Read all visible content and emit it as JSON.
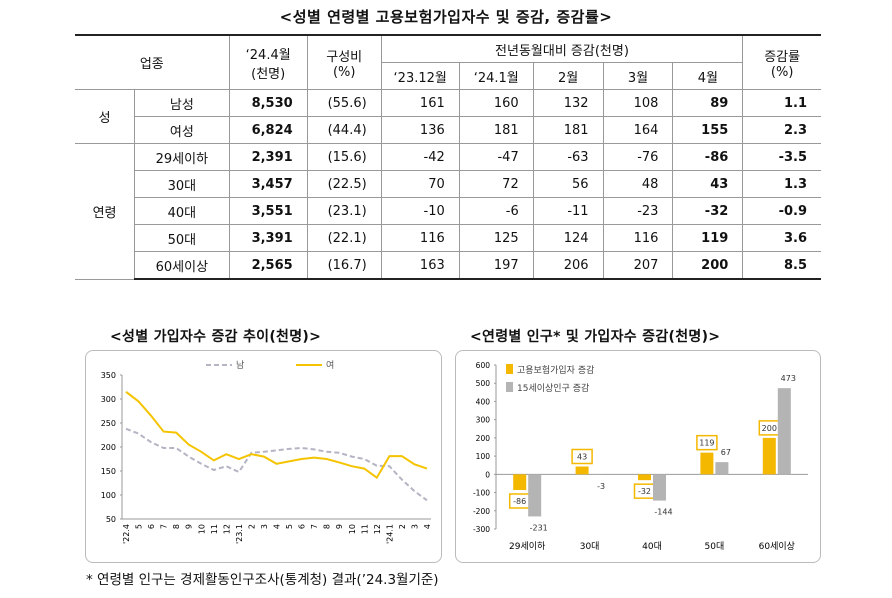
{
  "title": "<성별 연령별 고용보험가입자수 및 증감, 증감률>",
  "table": {
    "header": {
      "industry": "업종",
      "current": [
        "‘24.4월",
        "(천명)"
      ],
      "share": [
        "구성비",
        "(%)"
      ],
      "change": "전년동월대비 증감(천명)",
      "months": [
        "‘23.12월",
        "‘24.1월",
        "2월",
        "3월",
        "4월"
      ],
      "rate": [
        "증감률",
        "(%)"
      ]
    },
    "groups": [
      {
        "name": "성",
        "rows": [
          [
            "남성",
            "8,530",
            "(55.6)",
            "161",
            "160",
            "132",
            "108",
            "89",
            "1.1"
          ],
          [
            "여성",
            "6,824",
            "(44.4)",
            "136",
            "181",
            "181",
            "164",
            "155",
            "2.3"
          ]
        ]
      },
      {
        "name": "연령",
        "rows": [
          [
            "29세이하",
            "2,391",
            "(15.6)",
            "-42",
            "-47",
            "-63",
            "-76",
            "-86",
            "-3.5"
          ],
          [
            "30대",
            "3,457",
            "(22.5)",
            "70",
            "72",
            "56",
            "48",
            "43",
            "1.3"
          ],
          [
            "40대",
            "3,551",
            "(23.1)",
            "-10",
            "-6",
            "-11",
            "-23",
            "-32",
            "-0.9"
          ],
          [
            "50대",
            "3,391",
            "(22.1)",
            "116",
            "125",
            "124",
            "116",
            "119",
            "3.6"
          ],
          [
            "60세이상",
            "2,565",
            "(16.7)",
            "163",
            "197",
            "206",
            "207",
            "200",
            "8.5"
          ]
        ]
      }
    ]
  },
  "chart_data": [
    {
      "type": "line",
      "title": "<성별 가입자수 증감 추이(천명)>",
      "categories": [
        "'22.4",
        "5",
        "6",
        "7",
        "8",
        "9",
        "10",
        "11",
        "12",
        "'23.1",
        "2",
        "3",
        "4",
        "5",
        "6",
        "7",
        "8",
        "9",
        "10",
        "11",
        "12",
        "'24.1",
        "2",
        "3",
        "4"
      ],
      "ylim": [
        50,
        350
      ],
      "yticks": [
        50,
        100,
        150,
        200,
        250,
        300,
        350
      ],
      "grid": false,
      "legend": "top",
      "series": [
        {
          "name": "남",
          "color": "#b4b4c4",
          "dashed": true,
          "values": [
            238,
            228,
            210,
            198,
            198,
            180,
            165,
            152,
            160,
            148,
            188,
            190,
            193,
            196,
            198,
            195,
            190,
            188,
            180,
            175,
            161,
            160,
            132,
            108,
            89
          ]
        },
        {
          "name": "여",
          "color": "#f5c400",
          "dashed": false,
          "values": [
            315,
            295,
            265,
            232,
            230,
            205,
            190,
            172,
            185,
            175,
            185,
            180,
            165,
            170,
            175,
            178,
            175,
            168,
            160,
            155,
            136,
            181,
            181,
            164,
            155
          ]
        }
      ]
    },
    {
      "type": "bar",
      "title": "<연령별 인구* 및 가입자수 증감(천명)>",
      "categories": [
        "29세이하",
        "30대",
        "40대",
        "50대",
        "60세이상"
      ],
      "ylim": [
        -300,
        600
      ],
      "yticks": [
        -300,
        -200,
        -100,
        0,
        100,
        200,
        300,
        400,
        500,
        600
      ],
      "grid": false,
      "legend": "top-left",
      "series": [
        {
          "name": "고용보험가입자 증감",
          "color": "#f5b800",
          "boxed_labels": true,
          "values": [
            -86,
            43,
            -32,
            119,
            200
          ]
        },
        {
          "name": "15세이상인구 증감",
          "color": "#b4b4b4",
          "boxed_labels": false,
          "values": [
            -231,
            -3,
            -144,
            67,
            473
          ]
        }
      ]
    }
  ],
  "footnote": "* 연령별 인구는 경제활동인구조사(통계청) 결과(’24.3월기준)"
}
